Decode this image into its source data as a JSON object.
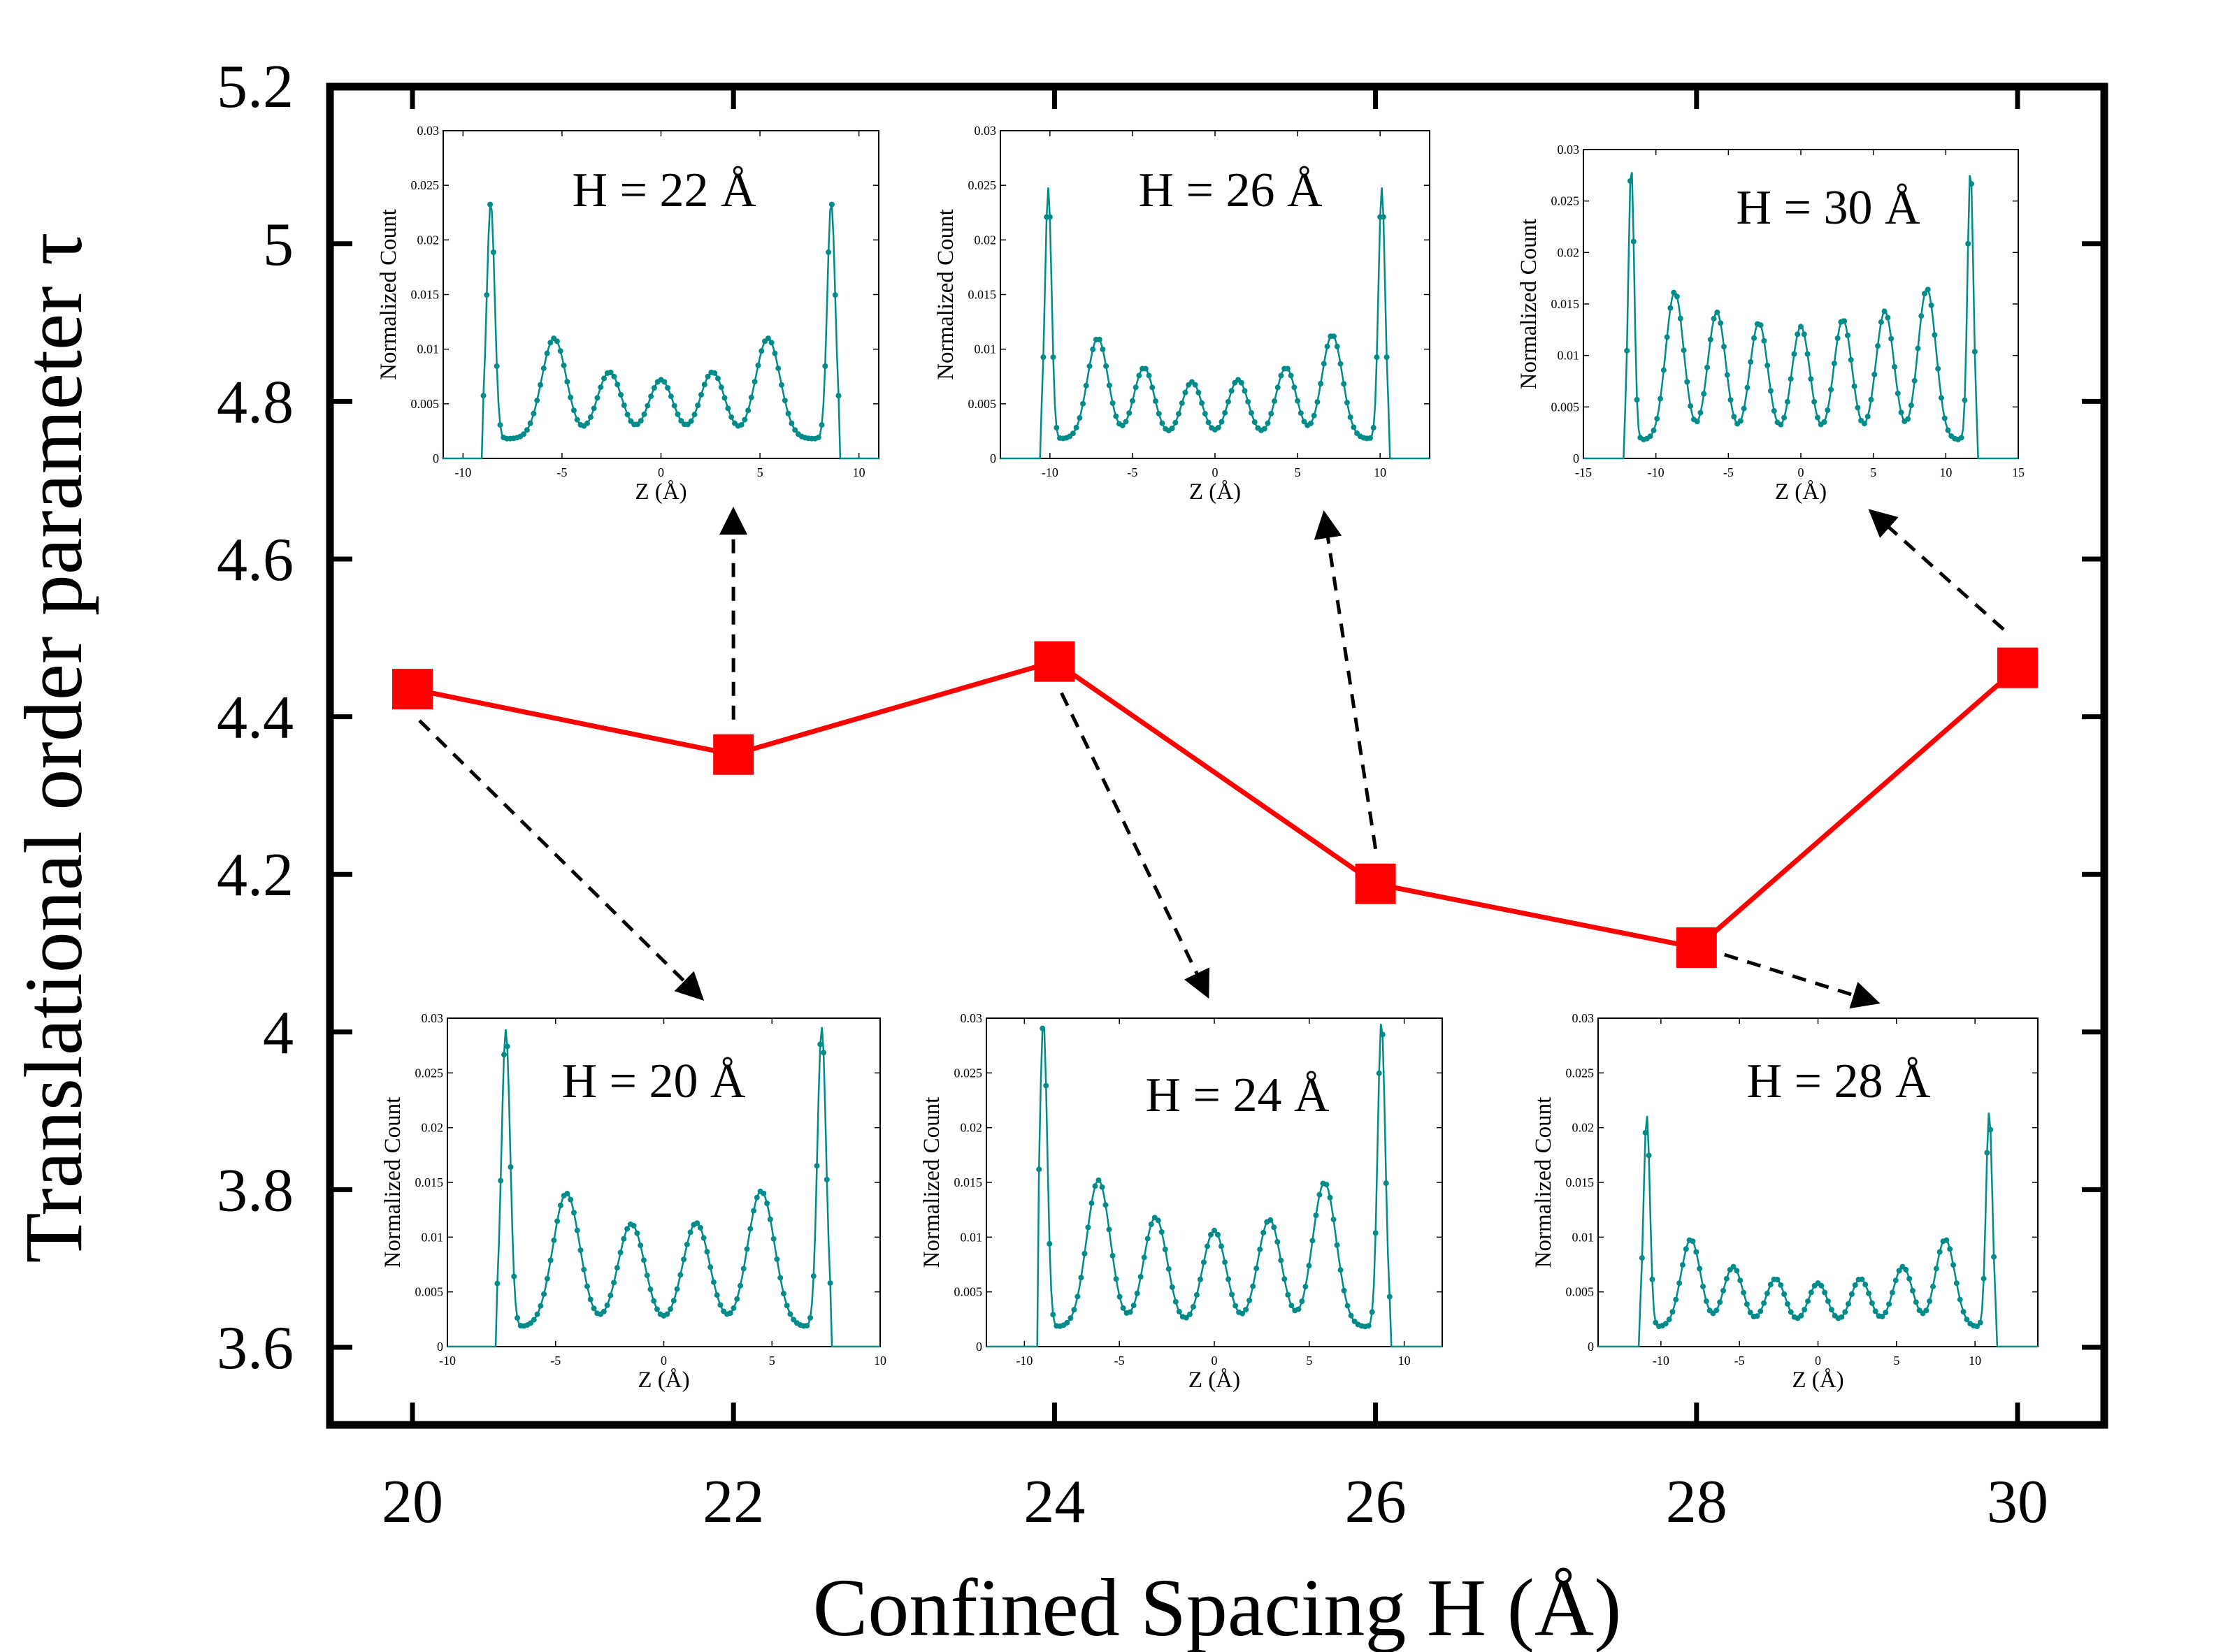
{
  "chart_data": {
    "type": "line",
    "title": "",
    "xlabel": "Confined Spacing H (Å)",
    "ylabel": "Translational order parameter τ",
    "x": [
      20,
      22,
      24,
      26,
      28,
      30
    ],
    "xlim": [
      19.5,
      30.5
    ],
    "ylim": [
      3.5,
      5.2
    ],
    "xticks": [
      "20",
      "22",
      "24",
      "26",
      "28",
      "30"
    ],
    "yticks": [
      "3.6",
      "3.8",
      "4",
      "4.2",
      "4.4",
      "4.6",
      "4.8",
      "5",
      "5.2"
    ],
    "series": [
      {
        "name": "tau",
        "color": "#ff0000",
        "marker": "square",
        "values": [
          4.435,
          4.352,
          4.47,
          4.188,
          4.107,
          4.462
        ]
      }
    ],
    "insets": [
      {
        "label": "H = 22 Å",
        "H": 22,
        "xlabel": "Z (Å)",
        "ylabel": "Normalized Count",
        "xlim": [
          -11,
          11
        ],
        "xticks": [
          "-10",
          "-5",
          "0",
          "5",
          "10"
        ],
        "yticks": [
          "0",
          "0.005",
          "0.01",
          "0.015",
          "0.02",
          "0.025",
          "0.03"
        ],
        "peaks_z": [
          -8.6,
          -5.4,
          -2.6,
          0.0,
          2.6,
          5.4,
          8.6
        ],
        "peaks_h": [
          0.0235,
          0.011,
          0.0079,
          0.0072,
          0.0079,
          0.011,
          0.0235
        ]
      },
      {
        "label": "H = 26 Å",
        "H": 26,
        "xlabel": "Z (Å)",
        "ylabel": "Normalized Count",
        "xlim": [
          -13,
          13
        ],
        "xticks": [
          "-10",
          "-5",
          "0",
          "5",
          "10"
        ],
        "yticks": [
          "0",
          "0.005",
          "0.01",
          "0.015",
          "0.02",
          "0.025",
          "0.03"
        ],
        "peaks_z": [
          -10.1,
          -7.1,
          -4.3,
          -1.4,
          1.4,
          4.3,
          7.1,
          10.1
        ],
        "peaks_h": [
          0.0248,
          0.011,
          0.0083,
          0.007,
          0.0072,
          0.0083,
          0.0113,
          0.0248
        ]
      },
      {
        "label": "H = 30 Å",
        "H": 30,
        "xlabel": "Z (Å)",
        "ylabel": "Normalized Count",
        "xlim": [
          -15,
          15
        ],
        "xticks": [
          "-15",
          "-10",
          "-5",
          "0",
          "5",
          "10",
          "15"
        ],
        "yticks": [
          "0",
          "0.005",
          "0.01",
          "0.015",
          "0.02",
          "0.025",
          "0.03"
        ],
        "peaks_z": [
          -11.7,
          -8.7,
          -5.8,
          -2.9,
          0.0,
          2.9,
          5.8,
          8.7,
          11.7
        ],
        "peaks_h": [
          0.0285,
          0.0162,
          0.0142,
          0.0132,
          0.0128,
          0.0135,
          0.0143,
          0.0165,
          0.0282
        ]
      },
      {
        "label": "H = 20 Å",
        "H": 20,
        "xlabel": "Z (Å)",
        "ylabel": "Normalized Count",
        "xlim": [
          -10,
          10
        ],
        "xticks": [
          "-10",
          "-5",
          "0",
          "5",
          "10"
        ],
        "yticks": [
          "0",
          "0.005",
          "0.01",
          "0.015",
          "0.02",
          "0.025",
          "0.03"
        ],
        "peaks_z": [
          -7.3,
          -4.5,
          -1.5,
          1.5,
          4.5,
          7.3
        ],
        "peaks_h": [
          0.029,
          0.014,
          0.0112,
          0.0113,
          0.0142,
          0.0292
        ]
      },
      {
        "label": "H = 24 Å",
        "H": 24,
        "xlabel": "Z (Å)",
        "ylabel": "Normalized Count",
        "xlim": [
          -12,
          12
        ],
        "xticks": [
          "-10",
          "-5",
          "0",
          "5",
          "10"
        ],
        "yticks": [
          "0",
          "0.005",
          "0.01",
          "0.015",
          "0.02",
          "0.025",
          "0.03"
        ],
        "peaks_z": [
          -9.0,
          -6.1,
          -3.1,
          0.0,
          2.9,
          5.8,
          8.8
        ],
        "peaks_h": [
          0.0298,
          0.0152,
          0.0118,
          0.0106,
          0.0116,
          0.015,
          0.0298
        ]
      },
      {
        "label": "H = 28 Å",
        "H": 28,
        "xlabel": "Z (Å)",
        "ylabel": "Normalized Count",
        "xlim": [
          -14,
          14
        ],
        "xticks": [
          "-10",
          "-5",
          "0",
          "5",
          "10"
        ],
        "yticks": [
          "0",
          "0.005",
          "0.01",
          "0.015",
          "0.02",
          "0.025",
          "0.03"
        ],
        "peaks_z": [
          -10.9,
          -8.1,
          -5.4,
          -2.7,
          0.0,
          2.7,
          5.4,
          8.1,
          10.9
        ],
        "peaks_h": [
          0.0212,
          0.0098,
          0.0073,
          0.0062,
          0.0058,
          0.0062,
          0.0073,
          0.0098,
          0.0215
        ]
      }
    ],
    "colors": {
      "main_line": "#ff0000",
      "inset_line": "#008b8b",
      "arrow": "#000000"
    }
  }
}
